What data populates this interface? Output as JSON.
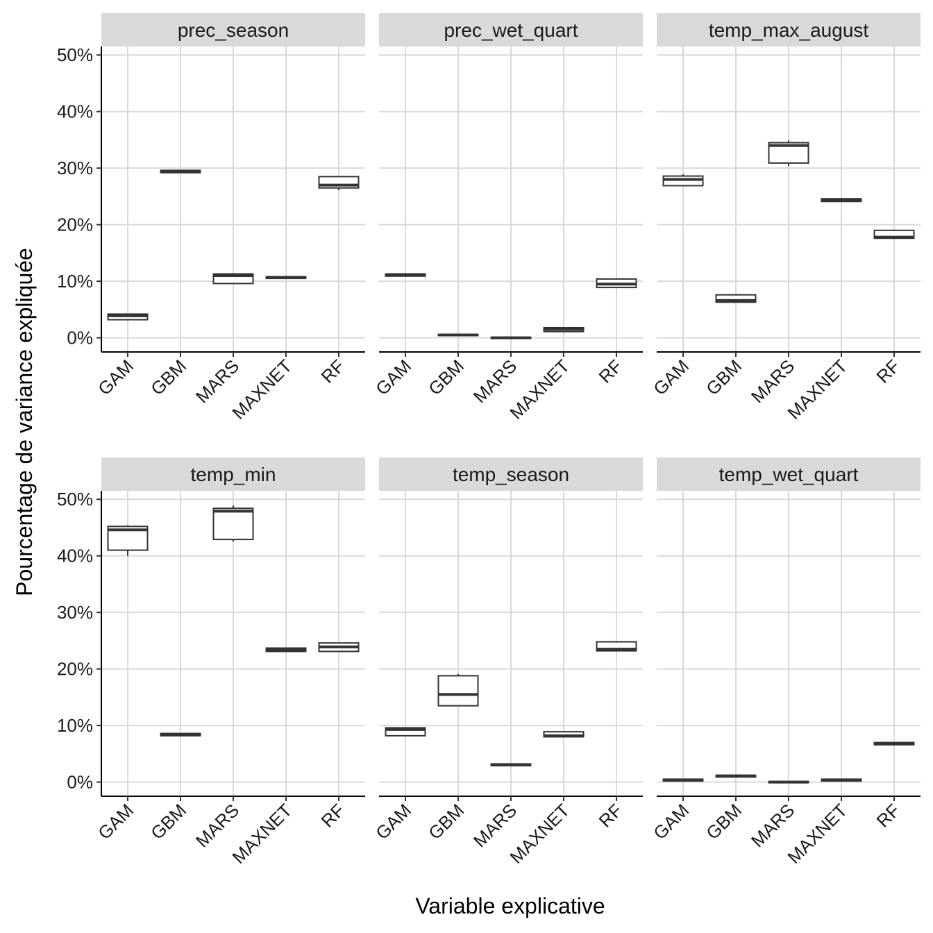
{
  "chart_data": {
    "type": "boxplot-facets",
    "xlabel": "Variable explicative",
    "ylabel": "Pourcentage de variance expliquée",
    "ylim": [
      -2.5,
      51.5
    ],
    "yticks": [
      0,
      10,
      20,
      30,
      40,
      50
    ],
    "ytick_labels": [
      "0%",
      "10%",
      "20%",
      "30%",
      "40%",
      "50%"
    ],
    "categories": [
      "GAM",
      "GBM",
      "MARS",
      "MAXNET",
      "RF"
    ],
    "grid": true,
    "facets": [
      {
        "name": "prec_season",
        "boxes": [
          {
            "category": "GAM",
            "min": 3.2,
            "q1": 3.2,
            "median": 3.9,
            "q3": 4.2,
            "max": 4.3
          },
          {
            "category": "GBM",
            "min": 29.2,
            "q1": 29.2,
            "median": 29.4,
            "q3": 29.6,
            "max": 29.7
          },
          {
            "category": "MARS",
            "min": 9.6,
            "q1": 9.6,
            "median": 11.0,
            "q3": 11.3,
            "max": 11.3
          },
          {
            "category": "MAXNET",
            "min": 10.5,
            "q1": 10.5,
            "median": 10.7,
            "q3": 10.8,
            "max": 10.9
          },
          {
            "category": "RF",
            "min": 26.1,
            "q1": 26.5,
            "median": 27.0,
            "q3": 28.5,
            "max": 28.5
          }
        ]
      },
      {
        "name": "prec_wet_quart",
        "boxes": [
          {
            "category": "GAM",
            "min": 10.9,
            "q1": 10.9,
            "median": 11.1,
            "q3": 11.3,
            "max": 11.4
          },
          {
            "category": "GBM",
            "min": 0.4,
            "q1": 0.4,
            "median": 0.5,
            "q3": 0.6,
            "max": 0.6
          },
          {
            "category": "MARS",
            "min": -0.1,
            "q1": -0.1,
            "median": 0.0,
            "q3": 0.1,
            "max": 0.1
          },
          {
            "category": "MAXNET",
            "min": 1.0,
            "q1": 1.1,
            "median": 1.5,
            "q3": 1.8,
            "max": 1.8
          },
          {
            "category": "RF",
            "min": 8.8,
            "q1": 8.9,
            "median": 9.5,
            "q3": 10.4,
            "max": 10.4
          }
        ]
      },
      {
        "name": "temp_max_august",
        "boxes": [
          {
            "category": "GAM",
            "min": 26.9,
            "q1": 26.9,
            "median": 28.0,
            "q3": 28.6,
            "max": 28.9
          },
          {
            "category": "GBM",
            "min": 6.3,
            "q1": 6.3,
            "median": 6.6,
            "q3": 7.6,
            "max": 7.6
          },
          {
            "category": "MARS",
            "min": 30.4,
            "q1": 30.9,
            "median": 34.0,
            "q3": 34.5,
            "max": 34.9
          },
          {
            "category": "MAXNET",
            "min": 24.1,
            "q1": 24.1,
            "median": 24.3,
            "q3": 24.6,
            "max": 24.7
          },
          {
            "category": "RF",
            "min": 17.5,
            "q1": 17.6,
            "median": 17.8,
            "q3": 19.0,
            "max": 19.0
          }
        ]
      },
      {
        "name": "temp_min",
        "boxes": [
          {
            "category": "GAM",
            "min": 40.0,
            "q1": 41.0,
            "median": 44.6,
            "q3": 45.2,
            "max": 45.4
          },
          {
            "category": "GBM",
            "min": 8.2,
            "q1": 8.2,
            "median": 8.4,
            "q3": 8.6,
            "max": 8.6
          },
          {
            "category": "MARS",
            "min": 42.5,
            "q1": 42.9,
            "median": 47.9,
            "q3": 48.4,
            "max": 48.9
          },
          {
            "category": "MAXNET",
            "min": 23.0,
            "q1": 23.1,
            "median": 23.4,
            "q3": 23.7,
            "max": 23.7
          },
          {
            "category": "RF",
            "min": 23.1,
            "q1": 23.1,
            "median": 23.9,
            "q3": 24.6,
            "max": 24.6
          }
        ]
      },
      {
        "name": "temp_season",
        "boxes": [
          {
            "category": "GAM",
            "min": 8.2,
            "q1": 8.2,
            "median": 9.3,
            "q3": 9.6,
            "max": 9.7
          },
          {
            "category": "GBM",
            "min": 13.5,
            "q1": 13.5,
            "median": 15.5,
            "q3": 18.8,
            "max": 19.1
          },
          {
            "category": "MARS",
            "min": 2.9,
            "q1": 2.9,
            "median": 3.1,
            "q3": 3.2,
            "max": 3.2
          },
          {
            "category": "MAXNET",
            "min": 8.0,
            "q1": 8.0,
            "median": 8.2,
            "q3": 8.9,
            "max": 8.9
          },
          {
            "category": "RF",
            "min": 23.2,
            "q1": 23.2,
            "median": 23.5,
            "q3": 24.8,
            "max": 24.8
          }
        ]
      },
      {
        "name": "temp_wet_quart",
        "boxes": [
          {
            "category": "GAM",
            "min": 0.2,
            "q1": 0.2,
            "median": 0.4,
            "q3": 0.5,
            "max": 0.5
          },
          {
            "category": "GBM",
            "min": 0.9,
            "q1": 0.9,
            "median": 1.1,
            "q3": 1.2,
            "max": 1.2
          },
          {
            "category": "MARS",
            "min": -0.1,
            "q1": -0.1,
            "median": 0.0,
            "q3": 0.1,
            "max": 0.1
          },
          {
            "category": "MAXNET",
            "min": 0.2,
            "q1": 0.2,
            "median": 0.4,
            "q3": 0.5,
            "max": 0.5
          },
          {
            "category": "RF",
            "min": 6.6,
            "q1": 6.6,
            "median": 6.8,
            "q3": 7.0,
            "max": 7.0
          }
        ]
      }
    ]
  }
}
